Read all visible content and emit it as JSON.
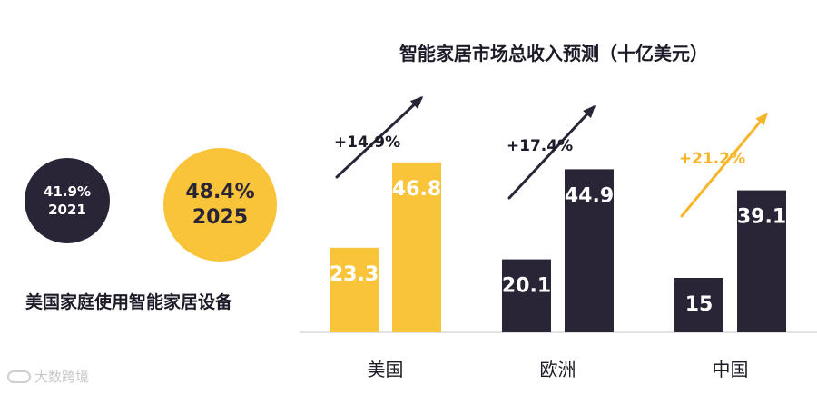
{
  "left_panel": {
    "circle_2021": {
      "percent": "41.9%",
      "year": "2021",
      "color": "#2a2536"
    },
    "circle_2025": {
      "percent": "48.4%",
      "year": "2025",
      "color": "#f9c43a"
    },
    "caption": "美国家庭使用智能家居设备"
  },
  "watermark": {
    "text": "大数跨境"
  },
  "chart_data": {
    "type": "bar",
    "title": "智能家居市场总收入预测（十亿美元）",
    "categories": [
      "美国",
      "欧洲",
      "中国"
    ],
    "series": [
      {
        "values": [
          23.3,
          20.1,
          15
        ]
      },
      {
        "values": [
          46.8,
          44.9,
          39.1
        ]
      }
    ],
    "growth_labels": [
      "+14.9%",
      "+17.4%",
      "+21.2%"
    ],
    "ylim": [
      0,
      55
    ],
    "grid": false,
    "colors": {
      "yellow": "#f9c43a",
      "dark": "#2a2536",
      "us_bars": "#f9c43a",
      "other_bars": "#2a2536",
      "china_arrow": "#f7b52a",
      "dark_arrow": "#2a2536"
    }
  }
}
